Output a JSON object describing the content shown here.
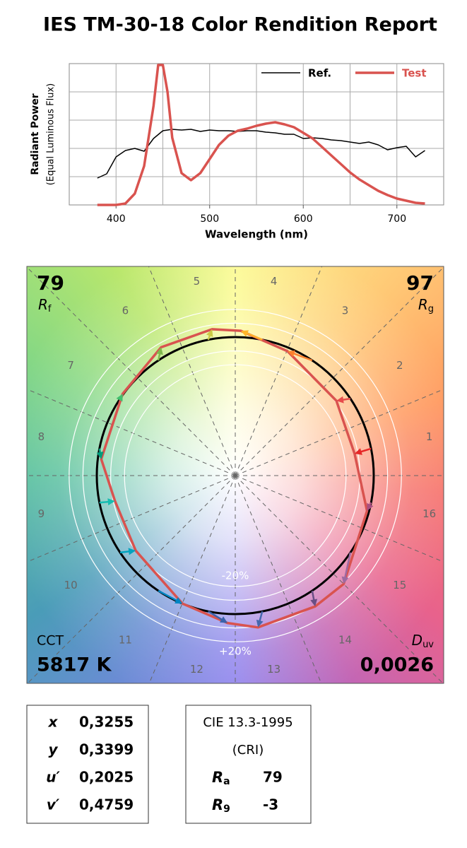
{
  "title": "IES TM-30-18 Color Rendition Report",
  "chart_data": [
    {
      "type": "line",
      "xlabel": "Wavelength (nm)",
      "ylabel": "Radiant Power",
      "ylabel2": "(Equal Luminous Flux)",
      "xlim": [
        350,
        750
      ],
      "xticks": [
        400,
        500,
        600,
        700
      ],
      "xgrid": [
        400,
        450,
        500,
        550,
        600,
        650,
        700
      ],
      "ylim": [
        0,
        1
      ],
      "ygrid": [
        0.2,
        0.4,
        0.6,
        0.8
      ],
      "legend": "top-right",
      "series": [
        {
          "name": "Ref.",
          "color": "#000000",
          "x": [
            380,
            390,
            400,
            410,
            420,
            430,
            440,
            450,
            460,
            470,
            480,
            490,
            500,
            510,
            520,
            530,
            540,
            550,
            560,
            570,
            580,
            590,
            600,
            610,
            620,
            630,
            640,
            650,
            660,
            670,
            680,
            690,
            700,
            710,
            720,
            730
          ],
          "values": [
            0.19,
            0.22,
            0.34,
            0.385,
            0.4,
            0.38,
            0.47,
            0.525,
            0.535,
            0.53,
            0.535,
            0.52,
            0.53,
            0.525,
            0.525,
            0.52,
            0.525,
            0.525,
            0.515,
            0.51,
            0.5,
            0.5,
            0.47,
            0.475,
            0.47,
            0.46,
            0.455,
            0.445,
            0.435,
            0.445,
            0.425,
            0.39,
            0.405,
            0.415,
            0.34,
            0.385
          ]
        },
        {
          "name": "Test",
          "color": "#d9534f",
          "x": [
            380,
            390,
            400,
            410,
            420,
            430,
            440,
            445,
            450,
            455,
            460,
            470,
            480,
            490,
            500,
            510,
            520,
            530,
            540,
            550,
            560,
            570,
            580,
            590,
            600,
            610,
            620,
            630,
            640,
            650,
            660,
            670,
            680,
            690,
            700,
            710,
            720,
            730
          ],
          "values": [
            0,
            0,
            0,
            0.01,
            0.08,
            0.275,
            0.7,
            0.99,
            0.99,
            0.8,
            0.475,
            0.225,
            0.175,
            0.225,
            0.325,
            0.425,
            0.49,
            0.525,
            0.54,
            0.56,
            0.575,
            0.585,
            0.57,
            0.55,
            0.51,
            0.47,
            0.41,
            0.35,
            0.29,
            0.23,
            0.18,
            0.14,
            0.1,
            0.07,
            0.045,
            0.03,
            0.015,
            0.01
          ]
        }
      ]
    },
    {
      "type": "vector",
      "bins": [
        1,
        2,
        3,
        4,
        5,
        6,
        7,
        8,
        9,
        10,
        11,
        12,
        13,
        14,
        15,
        16
      ],
      "colors": [
        "#e62828",
        "#e74b4b",
        "#fb812e",
        "#ffb529",
        "#cbca46",
        "#7eb94c",
        "#41c06d",
        "#009c7c",
        "#16bcb0",
        "#00a4bf",
        "#0085c3",
        "#3b62aa",
        "#4568ae",
        "#6a4e85",
        "#9d69a1",
        "#a74f81"
      ],
      "test_relative_chroma": [
        0.876,
        0.908,
        0.974,
        1.046,
        1.07,
        1.07,
        1.005,
        0.975,
        0.888,
        0.9,
        1.0,
        1.066,
        1.108,
        1.107,
        1.107,
        0.985
      ],
      "test_hue_angle": [
        10.4,
        36.5,
        67.2,
        87.8,
        99,
        120,
        144,
        173,
        192,
        217,
        247.6,
        267,
        278.5,
        301.4,
        315,
        345
      ],
      "test_color": "#d9534f",
      "ref_color": "#000000",
      "rings": [
        0.8,
        0.9,
        1.1,
        1.2
      ],
      "ring_labels": [
        {
          "value": 0.8,
          "label": "-20%"
        },
        {
          "value": 1.2,
          "label": "+20%"
        }
      ],
      "rf": {
        "label": {
          "symbol": "R",
          "sub": "f"
        },
        "value": 79
      },
      "rg": {
        "label": {
          "symbol": "R",
          "sub": "g"
        },
        "value": 97
      },
      "cct": {
        "label": "CCT",
        "value": {
          "value": 5817,
          "label": "5817 K"
        }
      },
      "duv": {
        "label": {
          "symbol": "D",
          "sub": "uv"
        },
        "value": {
          "value": 0.0026,
          "label": "0,0026"
        }
      }
    }
  ],
  "chromaticity": {
    "rows": [
      {
        "symbol": "x",
        "value": "0,3255"
      },
      {
        "symbol": "y",
        "value": "0,3399"
      },
      {
        "symbol": "u′",
        "value": "0,2025"
      },
      {
        "symbol": "v′",
        "value": "0,4759"
      }
    ]
  },
  "cri": {
    "title": "CIE 13.3-1995",
    "subtitle": "(CRI)",
    "rows": [
      {
        "symbol": "R",
        "sub": "a",
        "value": 79
      },
      {
        "symbol": "R",
        "sub": "9",
        "value": -3
      }
    ]
  }
}
